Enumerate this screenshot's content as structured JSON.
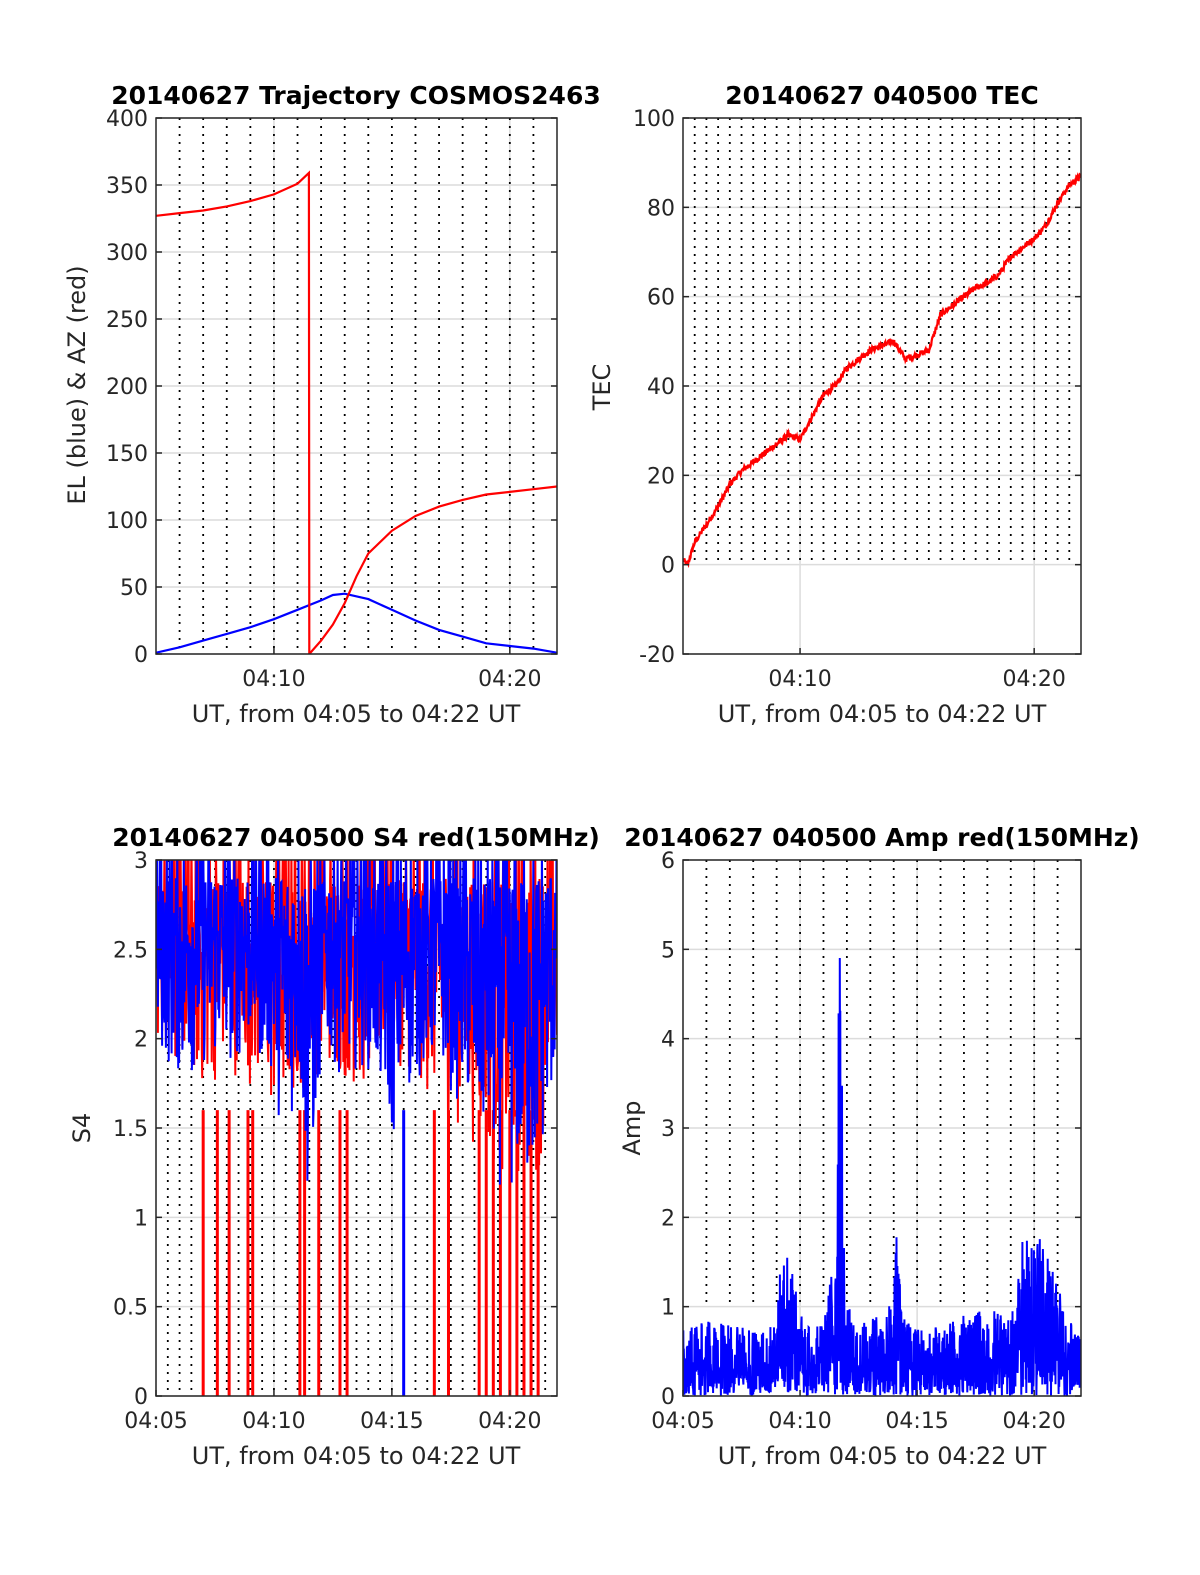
{
  "figure": {
    "background": "#ffffff"
  },
  "chart_data": [
    {
      "id": "trajectory",
      "type": "line",
      "title": "20140627 Trajectory COSMOS2463",
      "xlabel": "UT, from 04:05 to 04:22 UT",
      "ylabel": "EL (blue) & AZ (red)",
      "xlim": [
        0,
        17
      ],
      "ylim": [
        0,
        400
      ],
      "xticks": [
        {
          "v": 5,
          "label": "04:10"
        },
        {
          "v": 15,
          "label": "04:20"
        }
      ],
      "yticks": [
        {
          "v": 0,
          "label": "0"
        },
        {
          "v": 50,
          "label": "50"
        },
        {
          "v": 100,
          "label": "100"
        },
        {
          "v": 150,
          "label": "150"
        },
        {
          "v": 200,
          "label": "200"
        },
        {
          "v": 250,
          "label": "250"
        },
        {
          "v": 300,
          "label": "300"
        },
        {
          "v": 350,
          "label": "350"
        },
        {
          "v": 400,
          "label": "400"
        }
      ],
      "grid": true,
      "dotted_vlines_every_min": 1,
      "series": [
        {
          "color": "#0000ff",
          "kind": "line",
          "x": [
            0,
            1,
            2,
            3,
            4,
            5,
            6,
            7,
            7.5,
            8,
            9,
            10,
            11,
            12,
            13,
            14,
            15,
            16,
            17
          ],
          "y": [
            1,
            5,
            10,
            15,
            20,
            26,
            33,
            40,
            44,
            45,
            41,
            33,
            25,
            18,
            13,
            8,
            6,
            4,
            1
          ]
        },
        {
          "color": "#ff0000",
          "kind": "line",
          "x": [
            0,
            1,
            2,
            3,
            4,
            5,
            6,
            6.48,
            6.5,
            7,
            7.5,
            8,
            8.5,
            9,
            10,
            11,
            12,
            13,
            14,
            15,
            16,
            17
          ],
          "y": [
            327,
            329,
            331,
            334,
            338,
            343,
            351,
            359,
            0,
            10,
            22,
            38,
            58,
            75,
            92,
            103,
            110,
            115,
            119,
            121,
            123,
            125
          ]
        }
      ]
    },
    {
      "id": "tec",
      "type": "line",
      "title": "20140627 040500 TEC",
      "xlabel": "UT, from 04:05 to 04:22 UT",
      "ylabel": "TEC",
      "xlim": [
        0,
        17
      ],
      "ylim": [
        -20,
        100
      ],
      "xticks": [
        {
          "v": 5,
          "label": "04:10"
        },
        {
          "v": 15,
          "label": "04:20"
        }
      ],
      "yticks": [
        {
          "v": -20,
          "label": "-20"
        },
        {
          "v": 0,
          "label": "0"
        },
        {
          "v": 20,
          "label": "20"
        },
        {
          "v": 40,
          "label": "40"
        },
        {
          "v": 60,
          "label": "60"
        },
        {
          "v": 80,
          "label": "80"
        },
        {
          "v": 100,
          "label": "100"
        }
      ],
      "grid": true,
      "dotted_vlines_every_min": 0.5,
      "dotted_from_y": 0,
      "series": [
        {
          "color": "#ff0000",
          "kind": "line",
          "x": [
            0,
            0.2,
            0.5,
            1,
            1.5,
            2,
            2.5,
            3,
            3.5,
            4,
            4.5,
            5,
            5.5,
            6,
            6.5,
            7,
            7.5,
            8,
            8.5,
            9,
            9.5,
            10,
            10.5,
            11,
            11.5,
            12,
            12.5,
            13,
            13.5,
            14,
            14.5,
            15,
            15.5,
            16,
            16.5,
            17
          ],
          "y": [
            1,
            0,
            5,
            9,
            13,
            18,
            21,
            23,
            25,
            27,
            29,
            28,
            33,
            38,
            40,
            44,
            46,
            48,
            49,
            50,
            46,
            47,
            48,
            56,
            58,
            60,
            62,
            63,
            65,
            69,
            71,
            73,
            76,
            81,
            85,
            87
          ]
        }
      ]
    },
    {
      "id": "s4",
      "type": "line",
      "title": "20140627 040500 S4 red(150MHz)",
      "xlabel": "UT, from 04:05 to 04:22 UT",
      "ylabel": "S4",
      "xlim": [
        0,
        17
      ],
      "ylim": [
        0,
        3
      ],
      "xticks": [
        {
          "v": 0,
          "label": "04:05"
        },
        {
          "v": 5,
          "label": "04:10"
        },
        {
          "v": 10,
          "label": "04:15"
        },
        {
          "v": 15,
          "label": "04:20"
        }
      ],
      "yticks": [
        {
          "v": 0,
          "label": "0"
        },
        {
          "v": 0.5,
          "label": "0.5"
        },
        {
          "v": 1,
          "label": "1"
        },
        {
          "v": 1.5,
          "label": "1.5"
        },
        {
          "v": 2,
          "label": "2"
        },
        {
          "v": 2.5,
          "label": "2.5"
        },
        {
          "v": 3,
          "label": "3"
        }
      ],
      "grid": true,
      "dotted_vlines_every_min": 0.5,
      "series": [
        {
          "color": "#ff0000",
          "kind": "noise",
          "envelope_x": [
            0,
            1,
            2,
            3,
            4,
            5,
            6,
            7,
            8,
            9,
            10,
            11,
            12,
            13,
            14,
            15,
            16,
            17
          ],
          "envelope_min": [
            1.8,
            1.6,
            1.4,
            1.6,
            1.5,
            1.2,
            1.4,
            1.6,
            1.5,
            1.4,
            1.7,
            1.5,
            1.3,
            1.2,
            1.0,
            0.8,
            0.8,
            1.5
          ],
          "envelope_max": [
            3,
            3,
            3,
            3,
            3,
            3,
            3,
            3,
            3,
            3,
            3,
            3,
            3,
            3,
            3,
            3,
            3,
            3
          ],
          "dropouts_x": [
            2.0,
            2.6,
            3.1,
            3.9,
            4.1,
            6.1,
            6.3,
            6.9,
            7.8,
            8.1,
            11.8,
            12.4,
            13.7,
            14.0,
            14.3,
            14.6,
            15.0,
            15.3,
            15.6,
            15.9,
            16.2
          ]
        },
        {
          "color": "#0000ff",
          "kind": "noise",
          "envelope_x": [
            0,
            1,
            2,
            3,
            4,
            5,
            5.5,
            6,
            6.5,
            7,
            8,
            9,
            10,
            11,
            12,
            13,
            14,
            15,
            16,
            17
          ],
          "envelope_min": [
            1.7,
            1.5,
            1.6,
            1.6,
            1.7,
            1.5,
            1.0,
            1.5,
            0.5,
            1.6,
            1.6,
            1.6,
            1.1,
            1.5,
            1.6,
            1.3,
            1.0,
            0.7,
            0.7,
            1.5
          ],
          "envelope_max": [
            3,
            3,
            3,
            3,
            3,
            3,
            3,
            3,
            3,
            3,
            3,
            3,
            3,
            3,
            3,
            3,
            3,
            3,
            3,
            3
          ],
          "dropouts_x": [
            10.5
          ]
        }
      ]
    },
    {
      "id": "amp",
      "type": "line",
      "title": "20140627 040500 Amp red(150MHz)",
      "xlabel": "UT, from 04:05 to 04:22 UT",
      "ylabel": "Amp",
      "xlim": [
        0,
        17
      ],
      "ylim": [
        0,
        6
      ],
      "xticks": [
        {
          "v": 0,
          "label": "04:05"
        },
        {
          "v": 5,
          "label": "04:10"
        },
        {
          "v": 10,
          "label": "04:15"
        },
        {
          "v": 15,
          "label": "04:20"
        }
      ],
      "yticks": [
        {
          "v": 0,
          "label": "0"
        },
        {
          "v": 1,
          "label": "1"
        },
        {
          "v": 2,
          "label": "2"
        },
        {
          "v": 3,
          "label": "3"
        },
        {
          "v": 4,
          "label": "4"
        },
        {
          "v": 5,
          "label": "5"
        },
        {
          "v": 6,
          "label": "6"
        }
      ],
      "grid": true,
      "dotted_vlines_every_min": 1,
      "dotted_from_y": 1,
      "series": [
        {
          "color": "#0000ff",
          "kind": "noise",
          "envelope_x": [
            0,
            1,
            2,
            3,
            3.8,
            4.3,
            4.7,
            5.2,
            6,
            6.5,
            6.7,
            6.9,
            7.3,
            8,
            8.8,
            9.1,
            9.4,
            10,
            11,
            12,
            13,
            14,
            14.5,
            14.8,
            15.5,
            16.2,
            16.5,
            17
          ],
          "envelope_min": [
            0,
            0,
            0,
            0,
            0,
            0,
            0,
            0,
            0,
            0,
            0,
            0,
            0,
            0,
            0,
            0,
            0,
            0,
            0,
            0,
            0,
            0,
            0,
            0,
            0,
            0,
            0,
            0
          ],
          "envelope_max": [
            0.75,
            0.85,
            0.8,
            0.75,
            0.8,
            1.7,
            1.4,
            0.75,
            0.85,
            1.6,
            5.6,
            1.2,
            0.8,
            0.85,
            1.0,
            1.85,
            0.9,
            0.75,
            0.8,
            0.9,
            1.0,
            0.85,
            1.75,
            1.8,
            1.75,
            1.1,
            0.85,
            0.65
          ]
        }
      ]
    }
  ]
}
